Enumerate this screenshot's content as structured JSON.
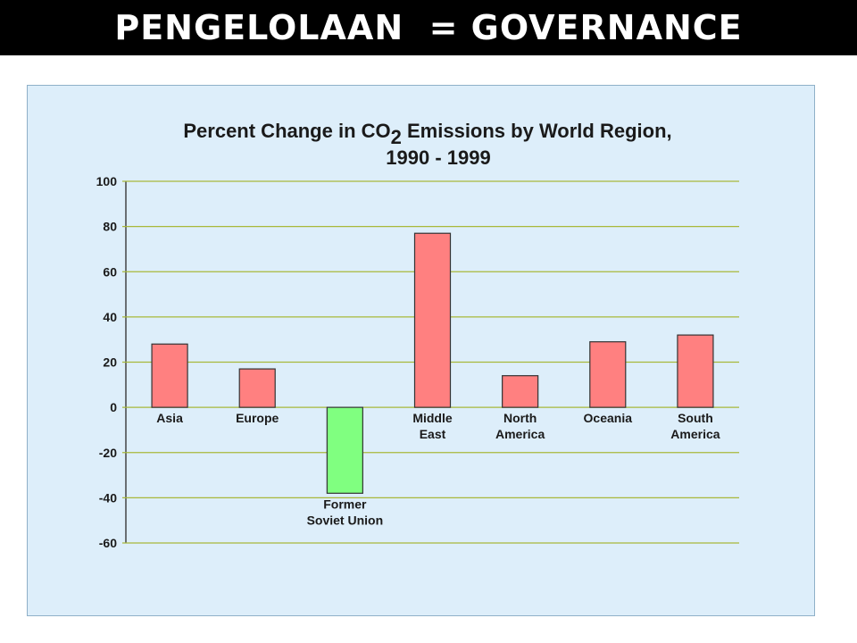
{
  "header": {
    "title": "PENGELOLAAN  = GOVERNANCE"
  },
  "colors": {
    "positive_bar": "#ff8080",
    "negative_bar": "#80ff80",
    "grid": "#a8b83a",
    "panel_background": "#ddeefa"
  },
  "chart_data": {
    "type": "bar",
    "title": "Percent Change in CO2 Emissions by World Region,",
    "title_main": "Percent Change in CO",
    "title_subscript": "2",
    "title_rest": " Emissions by World Region,",
    "subtitle": "1990 - 1999",
    "xlabel": "",
    "ylabel": "",
    "ylim": [
      -60,
      100
    ],
    "yticks": [
      100,
      80,
      60,
      40,
      20,
      0,
      -20,
      -40,
      -60
    ],
    "grid": true,
    "legend": "none",
    "categories": [
      [
        "Asia"
      ],
      [
        "Europe"
      ],
      [
        "Former",
        "Soviet Union"
      ],
      [
        "Middle",
        "East"
      ],
      [
        "North",
        "America"
      ],
      [
        "Oceania"
      ],
      [
        "South",
        "America"
      ]
    ],
    "values": [
      28,
      17,
      -38,
      77,
      14,
      29,
      32
    ]
  }
}
